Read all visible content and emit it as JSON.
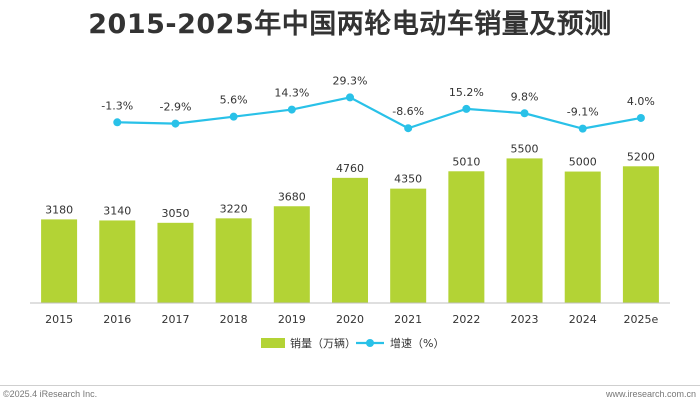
{
  "title": "2015-2025年中国两轮电动车销量及预测",
  "footer": {
    "left": "©2025.4 iResearch Inc.",
    "right": "www.iresearch.com.cn"
  },
  "colors": {
    "bar": "#b3d335",
    "line": "#29c1e8",
    "axis": "#bfbfbf",
    "text": "#333333"
  },
  "chart_data": {
    "type": "bar",
    "categories": [
      "2015",
      "2016",
      "2017",
      "2018",
      "2019",
      "2020",
      "2021",
      "2022",
      "2023",
      "2024",
      "2025e"
    ],
    "series": [
      {
        "name": "销量（万辆）",
        "type": "bar",
        "values": [
          3180,
          3140,
          3050,
          3220,
          3680,
          4760,
          4350,
          5010,
          5500,
          5000,
          5200
        ],
        "labels": [
          "3180",
          "3140",
          "3050",
          "3220",
          "3680",
          "4760",
          "4350",
          "5010",
          "5500",
          "5000",
          "5200"
        ]
      },
      {
        "name": "增速（%）",
        "type": "line",
        "values": [
          null,
          -1.3,
          -2.9,
          5.6,
          14.3,
          29.3,
          -8.6,
          15.2,
          9.8,
          -9.1,
          4.0
        ],
        "labels": [
          null,
          "-1.3%",
          "-2.9%",
          "5.6%",
          "14.3%",
          "29.3%",
          "-8.6%",
          "15.2%",
          "9.8%",
          "-9.1%",
          "4.0%"
        ]
      }
    ],
    "bar_axis_range": [
      0,
      6200
    ],
    "line_axis_range": [
      -12,
      31
    ],
    "grid": false,
    "legend_placement": "bottom-center"
  }
}
